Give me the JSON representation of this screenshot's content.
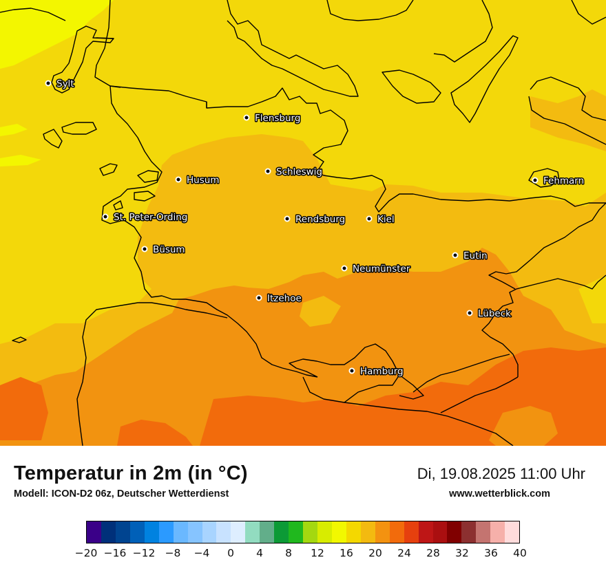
{
  "title": "Temperatur in 2m (in °C)",
  "model": "Modell: ICON-D2 06z, Deutscher Wetterdienst",
  "datetime": "Di, 19.08.2025 11:00 Uhr",
  "website": "www.wetterblick.com",
  "cities": [
    {
      "name": "Sylt"
    },
    {
      "name": "Flensburg"
    },
    {
      "name": "Husum"
    },
    {
      "name": "Schleswig"
    },
    {
      "name": "Fehmarn"
    },
    {
      "name": "St. Peter-Ording"
    },
    {
      "name": "Rendsburg"
    },
    {
      "name": "Kiel"
    },
    {
      "name": "Büsum"
    },
    {
      "name": "Eutin"
    },
    {
      "name": "Neumünster"
    },
    {
      "name": "Itzehoe"
    },
    {
      "name": "Lübeck"
    },
    {
      "name": "Hamburg"
    }
  ],
  "colorbar": {
    "min": -20,
    "max": 40,
    "step": 2,
    "colors": [
      "#3a0088",
      "#00307a",
      "#004490",
      "#0060b8",
      "#0082e0",
      "#2b9aff",
      "#6ab8ff",
      "#86c4ff",
      "#a8d4ff",
      "#c8e2ff",
      "#deeeff",
      "#92dcc0",
      "#62ae8a",
      "#0c9a36",
      "#20b81e",
      "#a4d810",
      "#d8ec00",
      "#f2f800",
      "#f4d800",
      "#f3ba10",
      "#f39210",
      "#f26b0c",
      "#e6400e",
      "#be1616",
      "#aa0f10",
      "#800000",
      "#8c3030",
      "#c47470",
      "#f6b0aa",
      "#ffdcdc"
    ],
    "ticks": [
      "−20",
      "−16",
      "−12",
      "−8",
      "−4",
      "0",
      "4",
      "8",
      "12",
      "16",
      "20",
      "24",
      "28",
      "32",
      "36",
      "40"
    ]
  }
}
